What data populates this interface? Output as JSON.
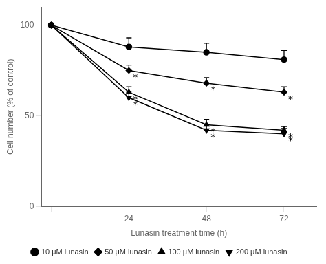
{
  "chart_data": {
    "type": "line",
    "xlabel": "Lunasin treatment time (h)",
    "ylabel": "Cell number (% of control)",
    "x": [
      0,
      24,
      48,
      72
    ],
    "series": [
      {
        "name": "10 μM lunasin",
        "values": [
          100,
          88,
          85,
          81
        ],
        "yerr_upper": [
          0,
          5,
          5,
          5
        ],
        "marker": "circle"
      },
      {
        "name": "50 μM lunasin",
        "values": [
          100,
          75,
          68,
          63
        ],
        "yerr_upper": [
          0,
          3,
          3,
          3
        ],
        "marker": "diamond"
      },
      {
        "name": "100 μM lunasin",
        "values": [
          100,
          63,
          45,
          42
        ],
        "yerr_upper": [
          0,
          3,
          3,
          2
        ],
        "marker": "triangle-up"
      },
      {
        "name": "200 μM lunasin",
        "values": [
          100,
          60,
          42,
          40
        ],
        "yerr_upper": [
          0,
          3,
          3,
          3
        ],
        "marker": "triangle-down"
      }
    ],
    "annotations": [
      {
        "x": 24,
        "y": 72,
        "text": "*"
      },
      {
        "x": 24,
        "y": 60,
        "text": "*"
      },
      {
        "x": 24,
        "y": 57,
        "text": "*"
      },
      {
        "x": 48,
        "y": 65,
        "text": "*"
      },
      {
        "x": 48,
        "y": 42,
        "text": "*"
      },
      {
        "x": 48,
        "y": 39,
        "text": "*"
      },
      {
        "x": 72,
        "y": 60,
        "text": "*"
      },
      {
        "x": 72,
        "y": 39,
        "text": "*"
      },
      {
        "x": 72,
        "y": 37,
        "text": "*"
      }
    ],
    "xlim": [
      -3,
      82
    ],
    "ylim": [
      0,
      110
    ],
    "xticks": [
      {
        "value": 0,
        "label": null
      },
      24,
      48,
      72
    ],
    "yticks": [
      0,
      50,
      100
    ],
    "color": "#000000",
    "line_style": "solid",
    "grid": false,
    "legend": "bottom"
  }
}
